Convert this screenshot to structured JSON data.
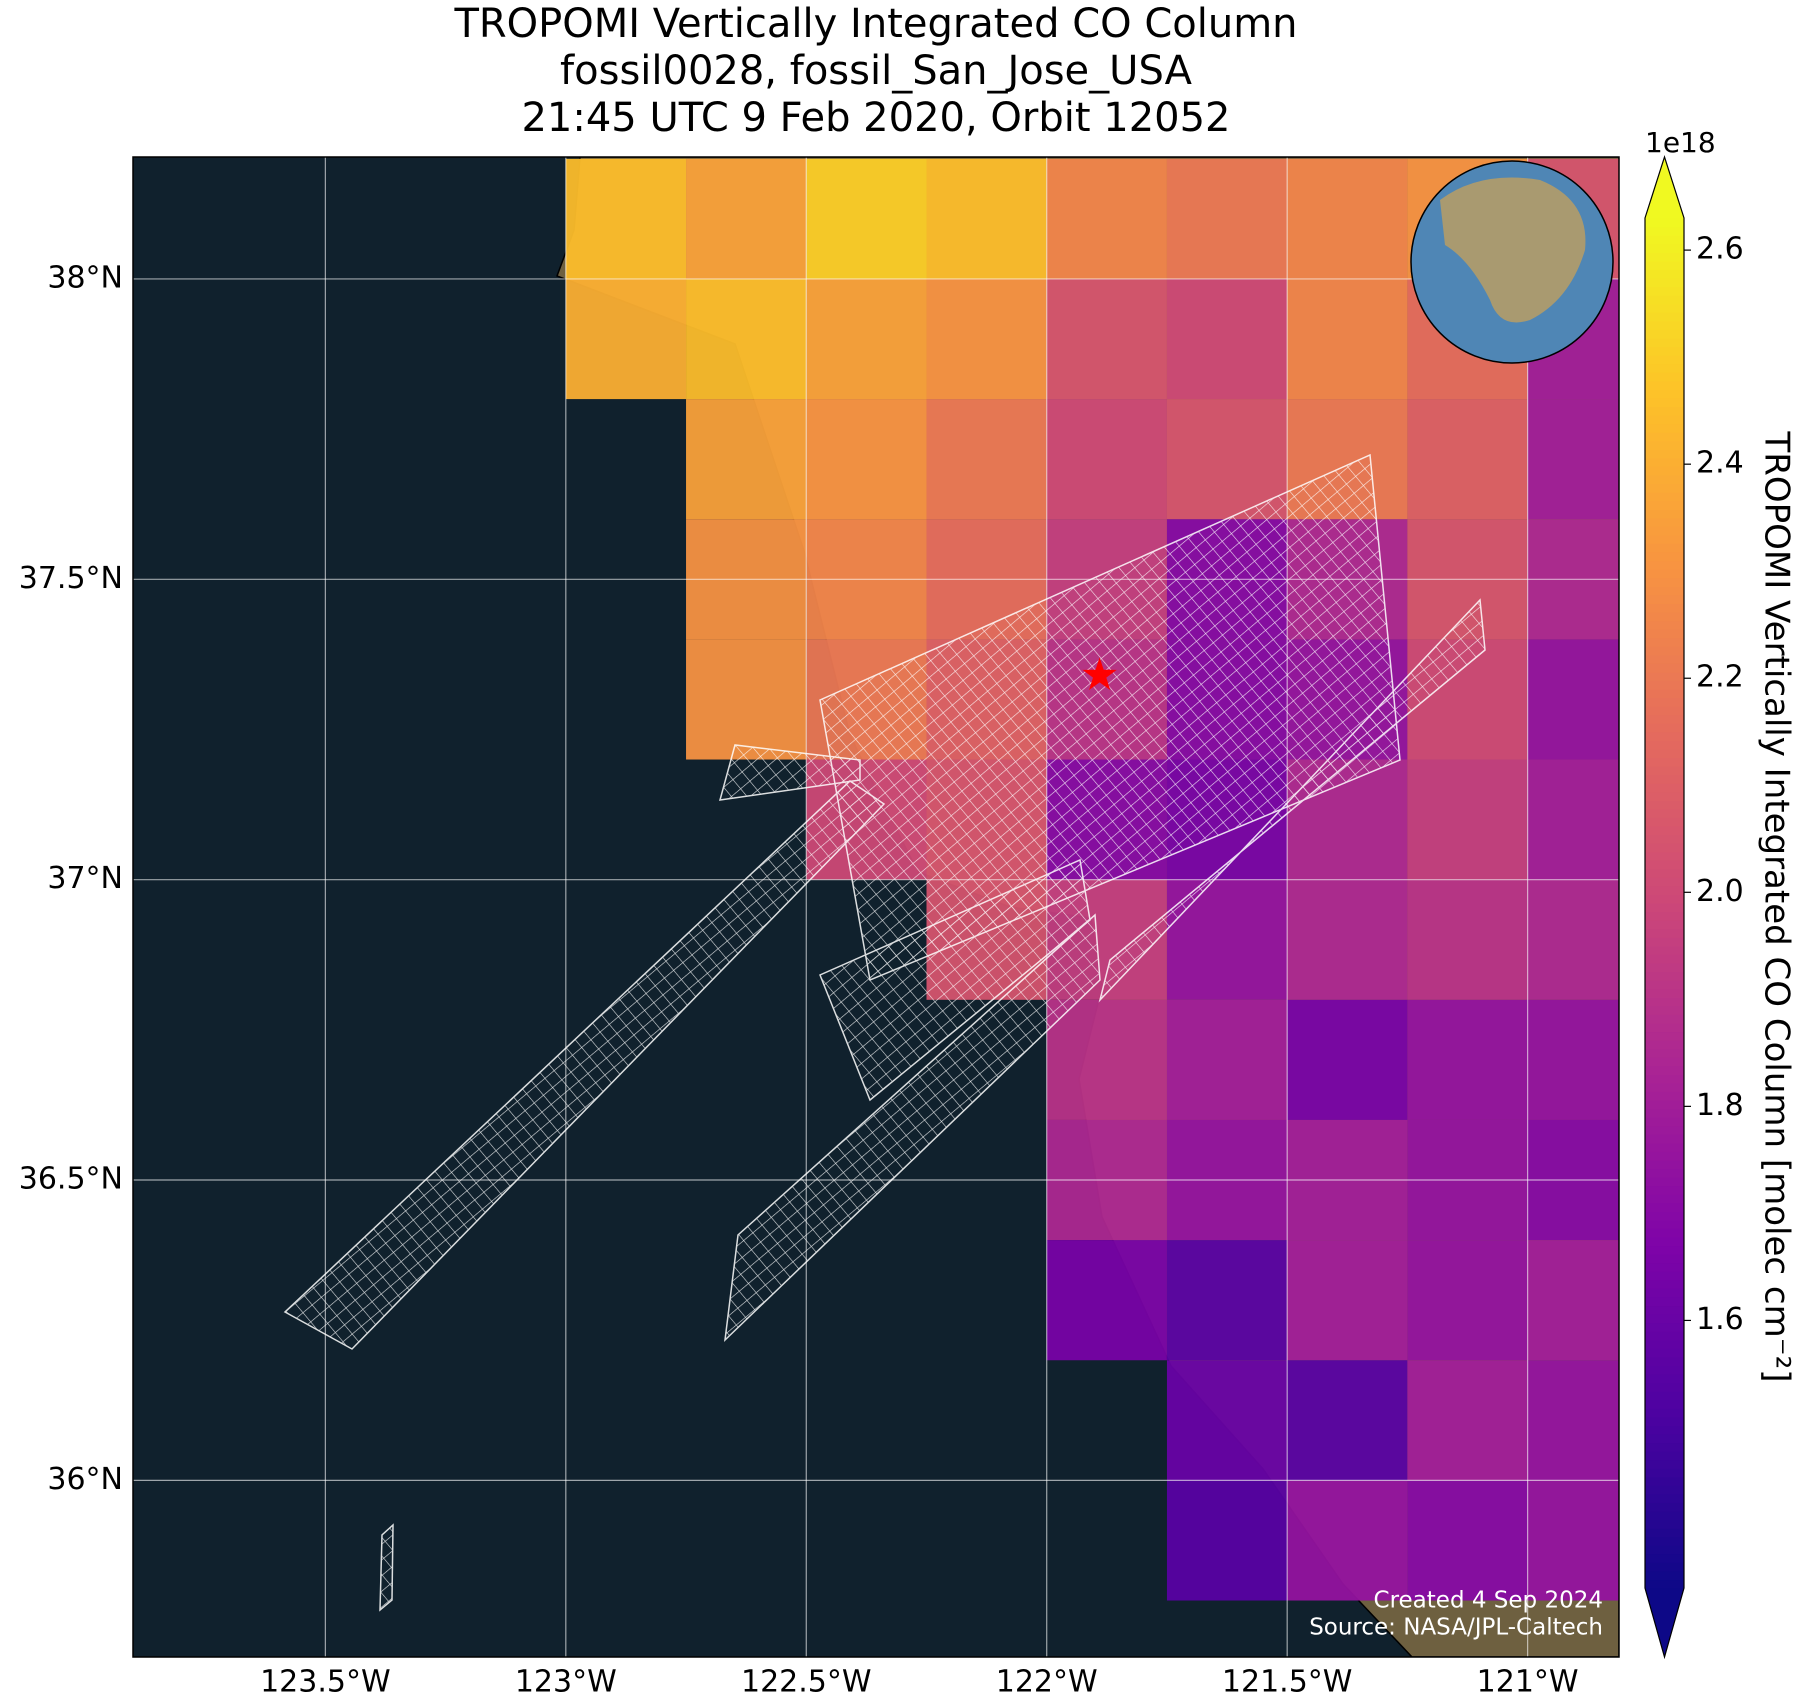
{
  "chart_data": {
    "type": "map",
    "title": [
      "TROPOMI Vertically Integrated CO Column",
      "fossil0028, fossil_San_Jose_USA",
      "21:45 UTC 9 Feb 2020, Orbit 12052"
    ],
    "xlim": [
      -123.9,
      -120.81
    ],
    "ylim": [
      35.706,
      38.203
    ],
    "xticks": [
      {
        "value": -123.5,
        "label": "123.5°W"
      },
      {
        "value": -123,
        "label": "123°W"
      },
      {
        "value": -122.5,
        "label": "122.5°W"
      },
      {
        "value": -122,
        "label": "122°W"
      },
      {
        "value": -121.5,
        "label": "121.5°W"
      },
      {
        "value": -121,
        "label": "121°W"
      }
    ],
    "yticks": [
      {
        "value": 36,
        "label": "36°N"
      },
      {
        "value": 36.5,
        "label": "36.5°N"
      },
      {
        "value": 37,
        "label": "37°N"
      },
      {
        "value": 37.5,
        "label": "37.5°N"
      },
      {
        "value": 38,
        "label": "38°N"
      }
    ],
    "grid": true,
    "colormap": "plasma",
    "lon_edges": [
      -123.0,
      -122.75,
      -122.5,
      -122.25,
      -122.0,
      -121.75,
      -121.5,
      -121.25,
      -121.0,
      -120.81
    ],
    "lat_edges": [
      38.2,
      38.0,
      37.8,
      37.6,
      37.4,
      37.2,
      37.0,
      36.8,
      36.6,
      36.4,
      36.2,
      36.0,
      35.8
    ],
    "values": [
      [
        2.45,
        2.35,
        2.5,
        2.45,
        2.25,
        2.2,
        2.25,
        2.3,
        2.05
      ],
      [
        2.4,
        2.45,
        2.35,
        2.3,
        2.05,
        2.0,
        2.25,
        2.15,
        1.8
      ],
      [
        null,
        2.35,
        2.3,
        2.2,
        2.0,
        2.05,
        2.2,
        2.1,
        1.8
      ],
      [
        null,
        2.3,
        2.25,
        2.15,
        1.95,
        1.7,
        1.85,
        2.05,
        1.85
      ],
      [
        null,
        2.3,
        2.2,
        2.1,
        1.9,
        1.7,
        1.75,
        2.0,
        1.75
      ],
      [
        null,
        null,
        2.0,
        2.05,
        1.7,
        1.65,
        1.85,
        1.95,
        1.8
      ],
      [
        null,
        null,
        null,
        2.05,
        1.95,
        1.75,
        1.85,
        1.9,
        1.85
      ],
      [
        null,
        null,
        null,
        null,
        1.9,
        1.8,
        1.65,
        1.75,
        1.75
      ],
      [
        null,
        null,
        null,
        null,
        1.85,
        1.75,
        1.8,
        1.75,
        1.7
      ],
      [
        null,
        null,
        null,
        null,
        1.65,
        1.55,
        1.8,
        1.75,
        1.8
      ],
      [
        null,
        null,
        null,
        null,
        null,
        1.6,
        1.55,
        1.8,
        1.75
      ],
      [
        null,
        null,
        null,
        null,
        null,
        1.55,
        1.75,
        1.7,
        1.75
      ]
    ],
    "clim": [
      1.35,
      2.63
    ],
    "colorbar_ticks": [
      1.6,
      1.8,
      {
        "value": 2,
        "label": "2.0"
      },
      2.2,
      2.4,
      2.6
    ],
    "colorbar_offset": "1e18",
    "colorbar_label": "TROPOMI Vertically Integrated CO Column [molec cm⁻²]",
    "site": {
      "lon": -121.89,
      "lat": 37.34,
      "color": "#ff0000"
    },
    "credits": [
      "Created 4 Sep 2024",
      "Source: NASA/JPL-Caltech"
    ]
  }
}
